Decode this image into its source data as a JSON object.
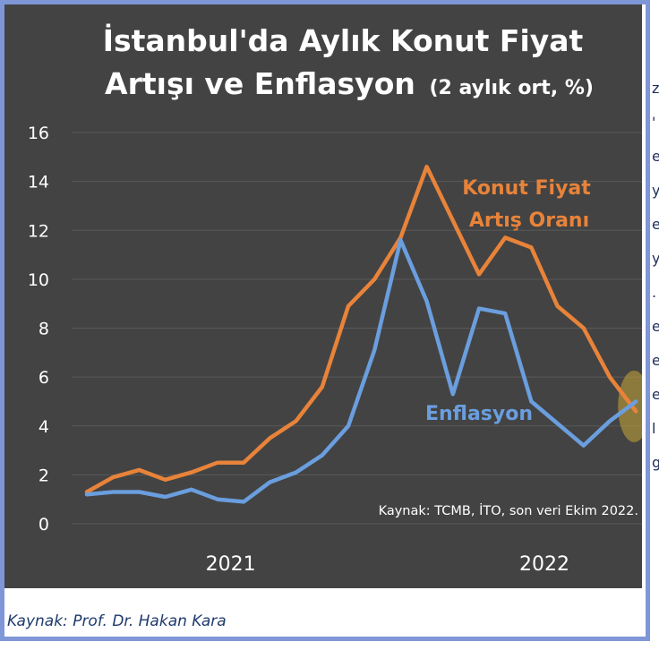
{
  "colors": {
    "background": "#434343",
    "orange": "#e8833a",
    "blue": "#6a9ede",
    "text": "#ffffff",
    "grid": "#5a5a5a",
    "highlight": "#c9a637"
  },
  "caption": "Kaynak: Prof. Dr. Hakan Kara",
  "chart_data": {
    "type": "line",
    "title": "İstanbul'da Aylık Konut Fiyat Artışı ve Enflasyon",
    "title_line1": "İstanbul'da Aylık Konut Fiyat",
    "title_line2": "Artışı ve Enflasyon",
    "title_suffix": "(2 aylık ort, %)",
    "source_note": "Kaynak: TCMB, İTO, son veri Ekim 2022.",
    "ylim": [
      0,
      16
    ],
    "y_ticks": [
      "0",
      "2",
      "4",
      "6",
      "8",
      "10",
      "12",
      "14",
      "16"
    ],
    "x_labels": [
      {
        "label": "2021",
        "index": 5.5
      },
      {
        "label": "2022",
        "index": 17.5
      }
    ],
    "grid": "horizontal",
    "series": [
      {
        "name": "Konut Fiyat Artış Oranı",
        "label_line1": "Konut Fiyat",
        "label_line2": "Artış Oranı",
        "color": "#e8833a",
        "values": [
          1.3,
          1.9,
          2.2,
          1.8,
          2.1,
          2.5,
          2.5,
          3.5,
          4.2,
          5.6,
          8.9,
          10.0,
          11.7,
          14.6,
          12.4,
          10.2,
          11.7,
          11.3,
          8.9,
          8.0,
          6.0,
          4.6
        ]
      },
      {
        "name": "Enflasyon",
        "label_line1": "Enflasyon",
        "color": "#6a9ede",
        "values": [
          1.2,
          1.3,
          1.3,
          1.1,
          1.4,
          1.0,
          0.9,
          1.7,
          2.1,
          2.8,
          4.0,
          7.1,
          11.6,
          9.1,
          5.3,
          8.8,
          8.6,
          5.0,
          4.1,
          3.2,
          4.2,
          5.0
        ]
      }
    ]
  }
}
